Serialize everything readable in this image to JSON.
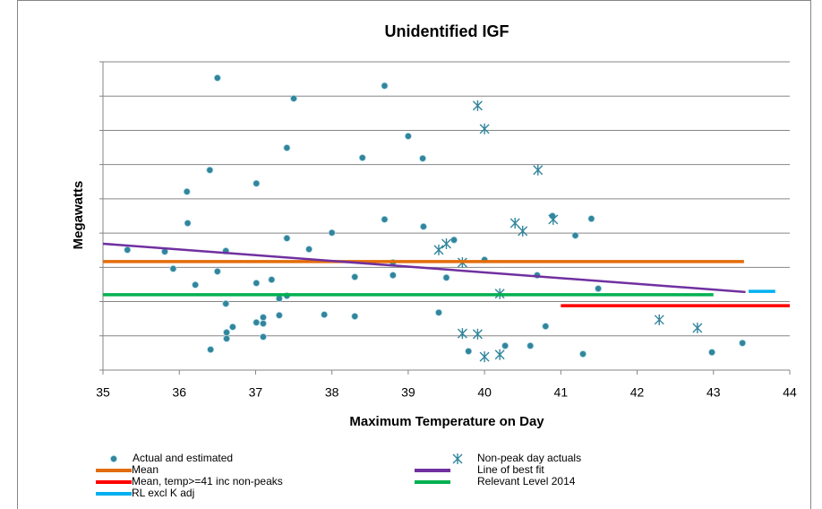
{
  "chart_data": {
    "type": "scatter",
    "title": "Unidentified IGF",
    "x_label": "Maximum Temperature on Day",
    "y_label": "Megawatts",
    "xlim": [
      35,
      44
    ],
    "xticks": [
      35,
      36,
      37,
      38,
      39,
      40,
      41,
      42,
      43,
      44
    ],
    "ylim": [
      0,
      9
    ],
    "yticks": [
      0,
      1,
      2,
      3,
      4,
      5,
      6,
      7,
      8,
      9
    ],
    "grid": true,
    "legend": "bottom",
    "series": [
      {
        "name": "Actual and estimated",
        "color": "#31859c",
        "marker": "circle",
        "x": [
          35.32,
          35.81,
          35.92,
          36.21,
          36.1,
          36.11,
          36.4,
          36.5,
          36.5,
          36.61,
          36.61,
          36.62,
          36.62,
          36.7,
          36.41,
          37.01,
          37.01,
          37.01,
          37.1,
          37.1,
          37.1,
          37.21,
          37.31,
          37.31,
          37.41,
          37.41,
          37.41,
          37.5,
          37.7,
          37.9,
          38.0,
          38.3,
          38.3,
          38.4,
          38.69,
          38.69,
          38.8,
          38.8,
          39.0,
          39.19,
          39.2,
          39.4,
          39.5,
          39.6,
          39.79,
          40.0,
          40.27,
          40.6,
          40.69,
          40.8,
          40.89,
          41.19,
          41.29,
          41.4,
          41.49,
          42.98,
          43.38
        ],
        "values": [
          3.51,
          3.46,
          2.96,
          2.49,
          5.21,
          4.29,
          5.84,
          8.53,
          2.88,
          3.48,
          1.94,
          1.1,
          0.92,
          1.26,
          0.6,
          5.45,
          2.54,
          1.39,
          1.54,
          1.36,
          0.97,
          2.64,
          2.09,
          1.6,
          2.17,
          3.85,
          6.49,
          7.93,
          3.53,
          1.62,
          4.01,
          2.72,
          1.57,
          6.2,
          8.3,
          4.4,
          3.14,
          2.77,
          6.83,
          6.18,
          4.19,
          1.68,
          2.7,
          3.8,
          0.55,
          3.22,
          0.71,
          0.71,
          2.77,
          1.28,
          4.5,
          3.93,
          0.47,
          4.42,
          2.38,
          0.52,
          0.79
        ]
      },
      {
        "name": "Non-peak day actuals",
        "color": "#31859c",
        "marker": "star",
        "x": [
          39.91,
          40.0,
          40.7,
          40.9,
          40.4,
          40.5,
          39.4,
          39.5,
          39.71,
          40.2,
          39.71,
          39.91,
          40.0,
          40.2,
          42.29,
          42.79
        ],
        "values": [
          7.72,
          7.04,
          5.84,
          4.4,
          4.29,
          4.06,
          3.51,
          3.69,
          3.14,
          2.23,
          1.07,
          1.05,
          0.39,
          0.45,
          1.47,
          1.23
        ]
      },
      {
        "name": "Mean",
        "color": "#e36c09",
        "marker": "line",
        "x": [
          35,
          43.4
        ],
        "values": [
          3.17,
          3.17
        ]
      },
      {
        "name": "Line of best fit",
        "color": "#7030a0",
        "marker": "line",
        "x": [
          35,
          43.42
        ],
        "values": [
          3.69,
          2.28
        ]
      },
      {
        "name": "Mean, temp>=41 inc non-peaks",
        "color": "#ff0000",
        "marker": "line",
        "x": [
          41,
          44
        ],
        "values": [
          1.88,
          1.88
        ]
      },
      {
        "name": "Relevant Level 2014",
        "color": "#00b050",
        "marker": "line",
        "x": [
          35,
          43
        ],
        "values": [
          2.2,
          2.2
        ]
      },
      {
        "name": "RL excl K adj",
        "color": "#00b0f0",
        "marker": "line",
        "x": [
          43.46,
          43.81
        ],
        "values": [
          2.3,
          2.3
        ]
      }
    ]
  }
}
